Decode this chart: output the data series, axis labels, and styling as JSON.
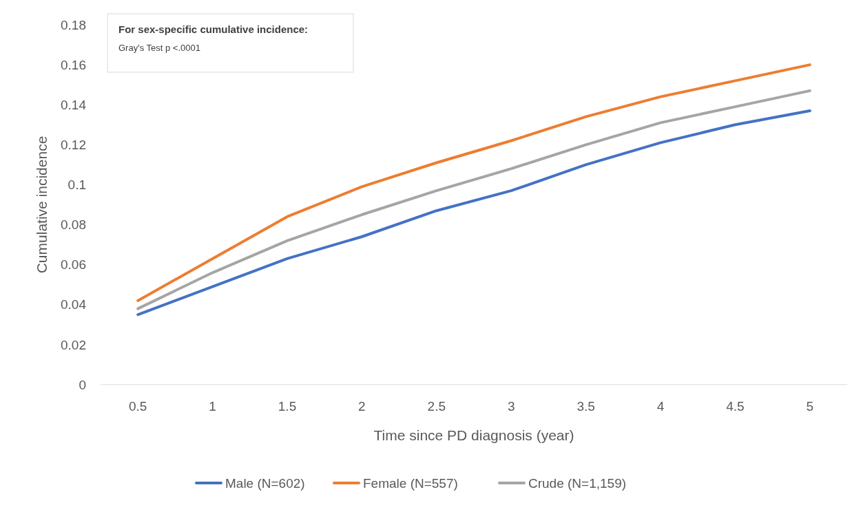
{
  "chart_data": {
    "type": "line",
    "xlabel": "Time since PD diagnosis (year)",
    "ylabel": "Cumulative incidence",
    "categories": [
      "0.5",
      "1",
      "1.5",
      "2",
      "2.5",
      "3",
      "3.5",
      "4",
      "4.5",
      "5"
    ],
    "series": [
      {
        "name": "Male (N=602)",
        "color": "#4472c4",
        "values": [
          0.035,
          0.049,
          0.063,
          0.074,
          0.087,
          0.097,
          0.11,
          0.121,
          0.13,
          0.137
        ]
      },
      {
        "name": "Female (N=557)",
        "color": "#ed7d31",
        "values": [
          0.042,
          0.063,
          0.084,
          0.099,
          0.111,
          0.122,
          0.134,
          0.144,
          0.152,
          0.16
        ]
      },
      {
        "name": "Crude (N=1,159)",
        "color": "#a5a5a5",
        "values": [
          0.038,
          0.056,
          0.072,
          0.085,
          0.097,
          0.108,
          0.12,
          0.131,
          0.139,
          0.147
        ]
      }
    ],
    "ylim": [
      0,
      0.18
    ],
    "yticks": [
      0,
      0.02,
      0.04,
      0.06,
      0.08,
      0.1,
      0.12,
      0.14,
      0.16,
      0.18
    ],
    "grid": false,
    "legend": "bottom",
    "marker": "none",
    "line_style": "solid",
    "annotations": [
      "For sex-specific cumulative incidence:",
      "Gray's Test p <.0001"
    ]
  }
}
